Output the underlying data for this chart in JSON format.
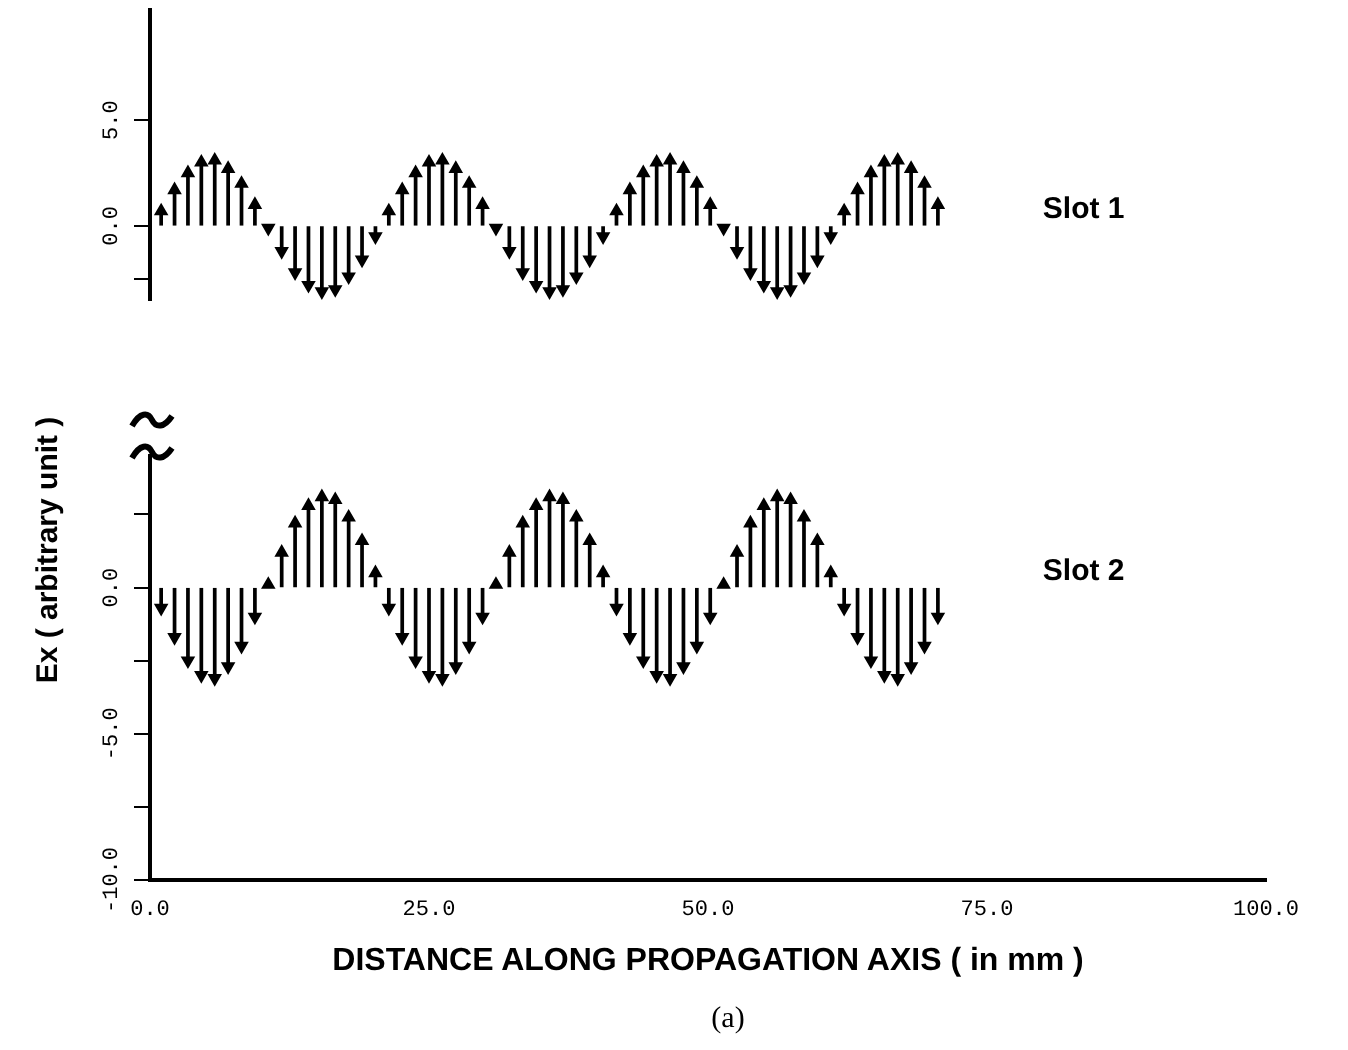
{
  "chart_data": [
    {
      "type": "lollipop",
      "marker": "triangle",
      "grid": false,
      "legend": false,
      "tick_labels": "y",
      "x": [
        1.0,
        2.2,
        3.4,
        4.6,
        5.8,
        7.0,
        8.2,
        9.4,
        10.6,
        11.8,
        13.0,
        14.2,
        15.4,
        16.6,
        17.8,
        19.0,
        20.2,
        21.4,
        22.6,
        23.8,
        25.0,
        26.2,
        27.4,
        28.6,
        29.8,
        31.0,
        32.2,
        33.4,
        34.6,
        35.8,
        37.0,
        38.2,
        39.4,
        40.6,
        41.8,
        43.0,
        44.2,
        45.4,
        46.6,
        47.8,
        49.0,
        50.2,
        51.4,
        52.6,
        53.8,
        55.0,
        56.2,
        57.4,
        58.6,
        59.8,
        61.0,
        62.2,
        63.4,
        64.6,
        65.8,
        67.0,
        68.2,
        69.4,
        70.6
      ],
      "series": [
        {
          "color": "#000000",
          "values": [
            0.7,
            1.7,
            2.5,
            3.0,
            3.1,
            2.7,
            2.0,
            1.0,
            -0.1,
            -1.2,
            -2.2,
            -2.8,
            -3.1,
            -3.0,
            -2.4,
            -1.6,
            -0.5,
            0.7,
            1.7,
            2.5,
            3.0,
            3.1,
            2.7,
            2.0,
            1.0,
            -0.1,
            -1.2,
            -2.2,
            -2.8,
            -3.1,
            -3.0,
            -2.4,
            -1.6,
            -0.5,
            0.7,
            1.7,
            2.5,
            3.0,
            3.1,
            2.7,
            2.0,
            1.0,
            -0.1,
            -1.2,
            -2.2,
            -2.8,
            -3.1,
            -3.0,
            -2.4,
            -1.6,
            -0.5,
            0.7,
            1.7,
            2.5,
            3.0,
            3.1,
            2.7,
            2.0,
            1.0
          ]
        }
      ],
      "xlim": [
        0,
        100
      ],
      "ylim": [
        -3.5,
        10.2
      ],
      "yticks": [
        {
          "value": -2.5,
          "label": null
        },
        {
          "value": 0,
          "label": "0.0"
        },
        {
          "value": 5,
          "label": "5.0"
        }
      ],
      "annotations": [
        "Slot 1"
      ]
    },
    {
      "type": "lollipop",
      "marker": "triangle",
      "grid": false,
      "legend": false,
      "x": [
        1.0,
        2.2,
        3.4,
        4.6,
        5.8,
        7.0,
        8.2,
        9.4,
        10.6,
        11.8,
        13.0,
        14.2,
        15.4,
        16.6,
        17.8,
        19.0,
        20.2,
        21.4,
        22.6,
        23.8,
        25.0,
        26.2,
        27.4,
        28.6,
        29.8,
        31.0,
        32.2,
        33.4,
        34.6,
        35.8,
        37.0,
        38.2,
        39.4,
        40.6,
        41.8,
        43.0,
        44.2,
        45.4,
        46.6,
        47.8,
        49.0,
        50.2,
        51.4,
        52.6,
        53.8,
        55.0,
        56.2,
        57.4,
        58.6,
        59.8,
        61.0,
        62.2,
        63.4,
        64.6,
        65.8,
        67.0,
        68.2,
        69.4,
        70.6
      ],
      "series": [
        {
          "color": "#000000",
          "values": [
            -0.7,
            -1.7,
            -2.5,
            -3.0,
            -3.1,
            -2.7,
            -2.0,
            -1.0,
            0.1,
            1.2,
            2.2,
            2.8,
            3.1,
            3.0,
            2.4,
            1.6,
            0.5,
            -0.7,
            -1.7,
            -2.5,
            -3.0,
            -3.1,
            -2.7,
            -2.0,
            -1.0,
            0.1,
            1.2,
            2.2,
            2.8,
            3.1,
            3.0,
            2.4,
            1.6,
            0.5,
            -0.7,
            -1.7,
            -2.5,
            -3.0,
            -3.1,
            -2.7,
            -2.0,
            -1.0,
            0.1,
            1.2,
            2.2,
            2.8,
            3.1,
            3.0,
            2.4,
            1.6,
            0.5,
            -0.7,
            -1.7,
            -2.5,
            -3.0,
            -3.1,
            -2.7,
            -2.0,
            -1.0
          ]
        }
      ],
      "xlim": [
        0,
        100
      ],
      "ylim": [
        -10,
        4.5
      ],
      "xticks": [
        {
          "value": 0,
          "label": "0.0"
        },
        {
          "value": 25,
          "label": "25.0"
        },
        {
          "value": 50,
          "label": "50.0"
        },
        {
          "value": 75,
          "label": "75.0"
        },
        {
          "value": 100,
          "label": "100.0"
        }
      ],
      "yticks": [
        {
          "value": -10,
          "label": "-10.0"
        },
        {
          "value": -7.5,
          "label": null
        },
        {
          "value": -5,
          "label": "-5.0"
        },
        {
          "value": -2.5,
          "label": null
        },
        {
          "value": 0,
          "label": "0.0"
        },
        {
          "value": 2.5,
          "label": null
        }
      ],
      "xlabel": "DISTANCE ALONG PROPAGATION AXIS ( in mm )",
      "ylabel": "Ex ( arbitrary unit )",
      "annotations": [
        "Slot 2",
        "(a)"
      ]
    }
  ]
}
